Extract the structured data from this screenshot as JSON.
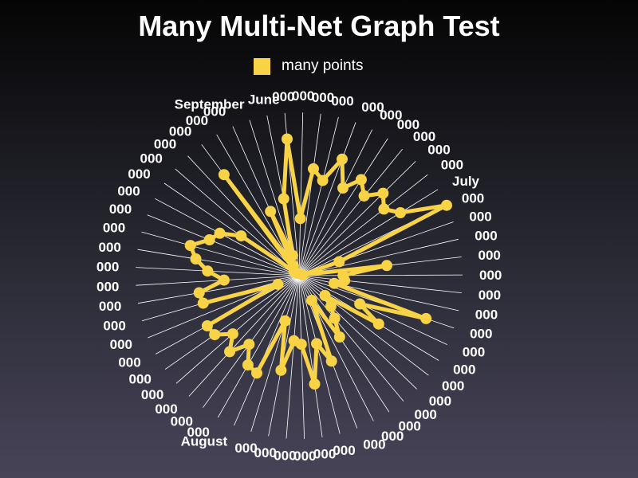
{
  "chart_data": {
    "type": "radar",
    "title": "Many Multi-Net Graph Test",
    "legend": {
      "placement": "top-center"
    },
    "grid": true,
    "spoke_labels": [
      "000",
      "000",
      "000",
      "000",
      "000",
      "000",
      "000",
      "000",
      "000",
      "000",
      "July",
      "000",
      "000",
      "000",
      "000",
      "000",
      "000",
      "000",
      "000",
      "000",
      "000",
      "000",
      "000",
      "000",
      "000",
      "000",
      "000",
      "000",
      "000",
      "000",
      "000",
      "000",
      "000",
      "August",
      "000",
      "000",
      "000",
      "000",
      "000",
      "000",
      "000",
      "000",
      "000",
      "000",
      "000",
      "000",
      "000",
      "000",
      "000",
      "000",
      "000",
      "000",
      "000",
      "000",
      "000",
      "September",
      "June"
    ],
    "ylim": [
      0,
      100
    ],
    "series": [
      {
        "name": "many points",
        "color": "#f8d346",
        "values": [
          84,
          35,
          66,
          60,
          76,
          60,
          70,
          63,
          72,
          66,
          73,
          100,
          26,
          2,
          54,
          27,
          28,
          22,
          82,
          41,
          57,
          20,
          27,
          34,
          45,
          17,
          56,
          43,
          67,
          42,
          40,
          59,
          29,
          65,
          63,
          52,
          63,
          54,
          63,
          64,
          14,
          61,
          62,
          46,
          56,
          64,
          69,
          59,
          55,
          43,
          4,
          2,
          77,
          7,
          43,
          13,
          48
        ]
      }
    ]
  },
  "colors": {
    "text": "#ffffff",
    "spokes": "#ffffff",
    "series": "#f8d346"
  }
}
